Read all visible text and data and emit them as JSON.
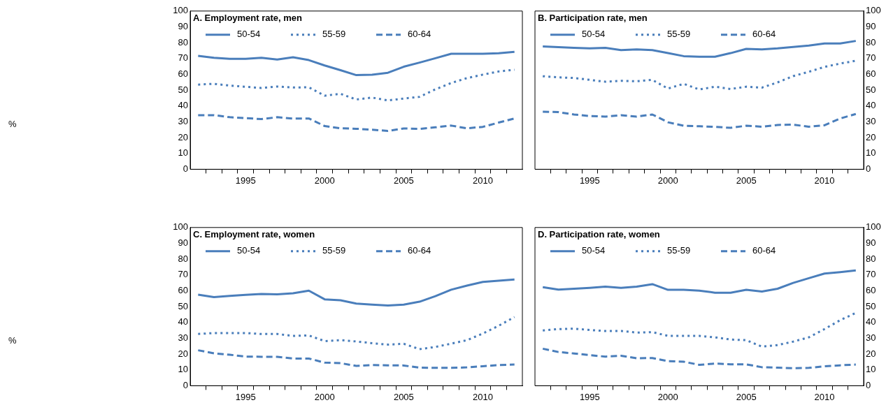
{
  "chart_data": [
    {
      "type": "line",
      "title": "A. Employment rate, men",
      "ylabel": "%",
      "legend": "top left",
      "grid": false,
      "x": [
        1992,
        1993,
        1994,
        1995,
        1996,
        1997,
        1998,
        1999,
        2000,
        2001,
        2002,
        2003,
        2004,
        2005,
        2006,
        2007,
        2008,
        2009,
        2010,
        2011,
        2012
      ],
      "xlim": [
        1991.5,
        2012.5
      ],
      "xticks": [
        {
          "value": 1992.5,
          "label": null
        },
        {
          "value": 1993.5,
          "label": null
        },
        {
          "value": 1994.5,
          "label": null
        },
        1995,
        {
          "value": 1995.5,
          "label": null
        },
        {
          "value": 1996.5,
          "label": null
        },
        {
          "value": 1997.5,
          "label": null
        },
        {
          "value": 1998.5,
          "label": null
        },
        {
          "value": 1999.5,
          "label": null
        },
        2000,
        {
          "value": 2000.5,
          "label": null
        },
        {
          "value": 2001.5,
          "label": null
        },
        {
          "value": 2002.5,
          "label": null
        },
        {
          "value": 2003.5,
          "label": null
        },
        {
          "value": 2004.5,
          "label": null
        },
        2005,
        {
          "value": 2005.5,
          "label": null
        },
        {
          "value": 2006.5,
          "label": null
        },
        {
          "value": 2007.5,
          "label": null
        },
        {
          "value": 2008.5,
          "label": null
        },
        {
          "value": 2009.5,
          "label": null
        },
        2010,
        {
          "value": 2010.5,
          "label": null
        },
        {
          "value": 2011.5,
          "label": null
        }
      ],
      "ylim": [
        0,
        100
      ],
      "yticks": [
        0,
        10,
        20,
        30,
        40,
        50,
        60,
        70,
        80,
        90,
        100
      ],
      "series": [
        {
          "name": "50-54",
          "color": "#4a7ebb",
          "line_style": "solid",
          "values": [
            71.7,
            70.5,
            69.8,
            69.8,
            70.5,
            69.4,
            70.8,
            69,
            65.6,
            62.6,
            59.5,
            59.8,
            61,
            64.8,
            67.4,
            70.2,
            73,
            73,
            73,
            73.3,
            74.2
          ]
        },
        {
          "name": "55-59",
          "color": "#4a7ebb",
          "line_style": "dotted",
          "values": [
            53.5,
            54,
            52.9,
            52.1,
            51.4,
            52.3,
            51.7,
            51.8,
            46.5,
            47.7,
            44.1,
            45.3,
            43.5,
            44.7,
            45.8,
            50.5,
            54.5,
            57.6,
            59.8,
            61.8,
            62.9
          ]
        },
        {
          "name": "60-64",
          "color": "#4a7ebb",
          "line_style": "dashed",
          "values": [
            34.2,
            34.2,
            32.9,
            32.3,
            31.7,
            32.9,
            32,
            32.1,
            27.3,
            25.9,
            25.6,
            25,
            24.2,
            25.8,
            25.5,
            26.5,
            27.6,
            25.9,
            26.8,
            29.5,
            32.1
          ]
        }
      ]
    },
    {
      "type": "line",
      "title": "B. Participation rate, men",
      "legend": "top left",
      "grid": false,
      "x": [
        1992,
        1993,
        1994,
        1995,
        1996,
        1997,
        1998,
        1999,
        2000,
        2001,
        2002,
        2003,
        2004,
        2005,
        2006,
        2007,
        2008,
        2009,
        2010,
        2011,
        2012
      ],
      "xlim": [
        1991.5,
        2012.5
      ],
      "xticks": [
        {
          "value": 1992.5,
          "label": null
        },
        {
          "value": 1993.5,
          "label": null
        },
        {
          "value": 1994.5,
          "label": null
        },
        1995,
        {
          "value": 1995.5,
          "label": null
        },
        {
          "value": 1996.5,
          "label": null
        },
        {
          "value": 1997.5,
          "label": null
        },
        {
          "value": 1998.5,
          "label": null
        },
        {
          "value": 1999.5,
          "label": null
        },
        2000,
        {
          "value": 2000.5,
          "label": null
        },
        {
          "value": 2001.5,
          "label": null
        },
        {
          "value": 2002.5,
          "label": null
        },
        {
          "value": 2003.5,
          "label": null
        },
        {
          "value": 2004.5,
          "label": null
        },
        2005,
        {
          "value": 2005.5,
          "label": null
        },
        {
          "value": 2006.5,
          "label": null
        },
        {
          "value": 2007.5,
          "label": null
        },
        {
          "value": 2008.5,
          "label": null
        },
        {
          "value": 2009.5,
          "label": null
        },
        2010,
        {
          "value": 2010.5,
          "label": null
        },
        {
          "value": 2011.5,
          "label": null
        }
      ],
      "y2lim": [
        0,
        100
      ],
      "y2ticks": [
        0,
        10,
        20,
        30,
        40,
        50,
        60,
        70,
        80,
        90,
        100
      ],
      "series": [
        {
          "name": "50-54",
          "color": "#4a7ebb",
          "line_style": "solid",
          "axis": "y2",
          "values": [
            77.6,
            77.2,
            76.7,
            76.4,
            76.7,
            75.3,
            75.8,
            75.3,
            73.4,
            71.5,
            71.1,
            71.1,
            73.4,
            76.1,
            75.8,
            76.4,
            77.3,
            78.2,
            79.5,
            79.5,
            81.1
          ]
        },
        {
          "name": "55-59",
          "color": "#4a7ebb",
          "line_style": "dotted",
          "axis": "y2",
          "values": [
            58.8,
            58.1,
            57.7,
            56.5,
            55.3,
            55.9,
            55.6,
            56.5,
            51,
            54,
            50.4,
            52.2,
            50.7,
            52.2,
            51.6,
            54.9,
            58.9,
            61.6,
            64.7,
            66.8,
            68.6
          ]
        },
        {
          "name": "60-64",
          "color": "#4a7ebb",
          "line_style": "dashed",
          "axis": "y2",
          "values": [
            36.4,
            36.1,
            34.6,
            33.6,
            33.3,
            34.2,
            33.3,
            34.6,
            29.7,
            27.5,
            27.2,
            26.8,
            26.2,
            27.5,
            26.9,
            28,
            28.2,
            26.9,
            27.8,
            32.1,
            34.9
          ]
        }
      ]
    },
    {
      "type": "line",
      "title": "C. Employment rate, women",
      "ylabel": "%",
      "legend": "top left",
      "grid": false,
      "x": [
        1992,
        1993,
        1994,
        1995,
        1996,
        1997,
        1998,
        1999,
        2000,
        2001,
        2002,
        2003,
        2004,
        2005,
        2006,
        2007,
        2008,
        2009,
        2010,
        2011,
        2012
      ],
      "xlim": [
        1991.5,
        2012.5
      ],
      "xticks": [
        {
          "value": 1992.5,
          "label": null
        },
        {
          "value": 1993.5,
          "label": null
        },
        {
          "value": 1994.5,
          "label": null
        },
        1995,
        {
          "value": 1995.5,
          "label": null
        },
        {
          "value": 1996.5,
          "label": null
        },
        {
          "value": 1997.5,
          "label": null
        },
        {
          "value": 1998.5,
          "label": null
        },
        {
          "value": 1999.5,
          "label": null
        },
        2000,
        {
          "value": 2000.5,
          "label": null
        },
        {
          "value": 2001.5,
          "label": null
        },
        {
          "value": 2002.5,
          "label": null
        },
        {
          "value": 2003.5,
          "label": null
        },
        {
          "value": 2004.5,
          "label": null
        },
        2005,
        {
          "value": 2005.5,
          "label": null
        },
        {
          "value": 2006.5,
          "label": null
        },
        {
          "value": 2007.5,
          "label": null
        },
        {
          "value": 2008.5,
          "label": null
        },
        {
          "value": 2009.5,
          "label": null
        },
        2010,
        {
          "value": 2010.5,
          "label": null
        },
        {
          "value": 2011.5,
          "label": null
        }
      ],
      "ylim": [
        0,
        100
      ],
      "yticks": [
        0,
        10,
        20,
        30,
        40,
        50,
        60,
        70,
        80,
        90,
        100
      ],
      "series": [
        {
          "name": "50-54",
          "color": "#4a7ebb",
          "line_style": "solid",
          "values": [
            57.5,
            56,
            56.8,
            57.4,
            58,
            57.8,
            58.4,
            60.1,
            54.6,
            54,
            51.9,
            51.3,
            50.7,
            51.3,
            53.1,
            56.6,
            60.7,
            63.3,
            65.6,
            66.4,
            67.1
          ]
        },
        {
          "name": "55-59",
          "color": "#4a7ebb",
          "line_style": "dotted",
          "values": [
            32.7,
            33.3,
            33.3,
            33.3,
            32.7,
            32.7,
            31.5,
            31.8,
            28.2,
            28.8,
            28,
            26.9,
            26,
            26.5,
            23.1,
            24.5,
            26.6,
            28.8,
            33,
            37.9,
            43.4
          ]
        },
        {
          "name": "60-64",
          "color": "#4a7ebb",
          "line_style": "dashed",
          "values": [
            22.4,
            20.5,
            19.6,
            18.4,
            18.3,
            18.3,
            17.2,
            17.2,
            14.6,
            14.3,
            12.5,
            13.1,
            12.9,
            12.8,
            11.4,
            11.3,
            11.3,
            11.6,
            12.3,
            13.1,
            13.4
          ]
        }
      ]
    },
    {
      "type": "line",
      "title": "D. Participation rate, women",
      "legend": "top left",
      "grid": false,
      "x": [
        1992,
        1993,
        1994,
        1995,
        1996,
        1997,
        1998,
        1999,
        2000,
        2001,
        2002,
        2003,
        2004,
        2005,
        2006,
        2007,
        2008,
        2009,
        2010,
        2011,
        2012
      ],
      "xlim": [
        1991.5,
        2012.5
      ],
      "xticks": [
        {
          "value": 1992.5,
          "label": null
        },
        {
          "value": 1993.5,
          "label": null
        },
        {
          "value": 1994.5,
          "label": null
        },
        1995,
        {
          "value": 1995.5,
          "label": null
        },
        {
          "value": 1996.5,
          "label": null
        },
        {
          "value": 1997.5,
          "label": null
        },
        {
          "value": 1998.5,
          "label": null
        },
        {
          "value": 1999.5,
          "label": null
        },
        2000,
        {
          "value": 2000.5,
          "label": null
        },
        {
          "value": 2001.5,
          "label": null
        },
        {
          "value": 2002.5,
          "label": null
        },
        {
          "value": 2003.5,
          "label": null
        },
        {
          "value": 2004.5,
          "label": null
        },
        2005,
        {
          "value": 2005.5,
          "label": null
        },
        {
          "value": 2006.5,
          "label": null
        },
        {
          "value": 2007.5,
          "label": null
        },
        {
          "value": 2008.5,
          "label": null
        },
        {
          "value": 2009.5,
          "label": null
        },
        2010,
        {
          "value": 2010.5,
          "label": null
        },
        {
          "value": 2011.5,
          "label": null
        }
      ],
      "y2lim": [
        0,
        100
      ],
      "y2ticks": [
        0,
        10,
        20,
        30,
        40,
        50,
        60,
        70,
        80,
        90,
        100
      ],
      "series": [
        {
          "name": "50-54",
          "color": "#4a7ebb",
          "line_style": "solid",
          "axis": "y2",
          "values": [
            62.3,
            60.7,
            61.3,
            61.9,
            62.6,
            61.9,
            62.6,
            64.2,
            60.6,
            60.6,
            60.1,
            58.8,
            58.8,
            60.6,
            59.5,
            61.3,
            65,
            68,
            70.9,
            71.8,
            72.9
          ]
        },
        {
          "name": "55-59",
          "color": "#4a7ebb",
          "line_style": "dotted",
          "axis": "y2",
          "values": [
            34.9,
            35.8,
            36.1,
            35.2,
            34.6,
            34.6,
            33.6,
            33.9,
            31.5,
            31.5,
            31.5,
            30.6,
            29.2,
            28.8,
            24.7,
            25.7,
            27.9,
            30.6,
            35.8,
            41.4,
            46
          ]
        },
        {
          "name": "60-64",
          "color": "#4a7ebb",
          "line_style": "dashed",
          "axis": "y2",
          "values": [
            23.4,
            21.3,
            20.4,
            19.3,
            18.4,
            18.9,
            17.4,
            17.5,
            15.5,
            15.2,
            13.2,
            14,
            13.5,
            13.5,
            11.7,
            11.4,
            11.1,
            11.3,
            12.3,
            12.9,
            13.4
          ]
        }
      ]
    }
  ]
}
